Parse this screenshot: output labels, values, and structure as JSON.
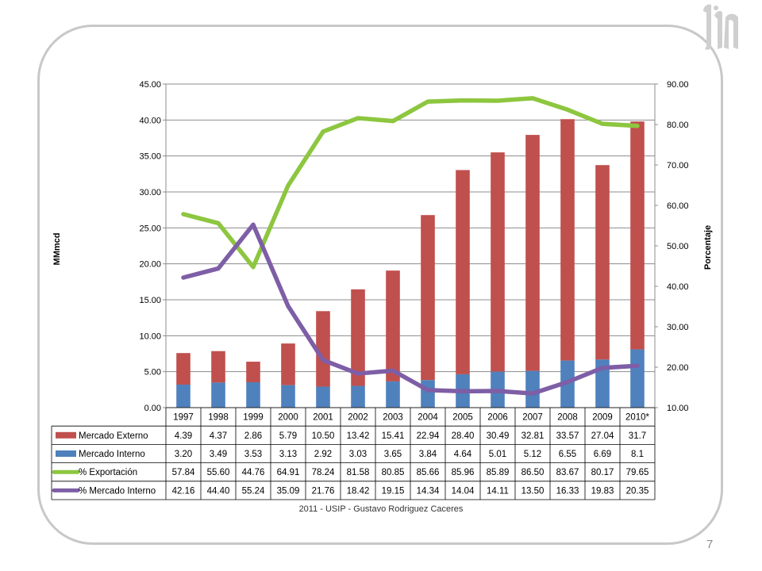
{
  "footer": {
    "credit": "2011 - USIP - Gustavo Rodriguez Caceres",
    "page_number": "7"
  },
  "colors": {
    "externo": "#c0504d",
    "interno": "#4f81bd",
    "exportacion": "#8dc63f",
    "mercado_interno_pct": "#7e5ea6",
    "gridline": "#8c8c8c",
    "frame": "#c8c8c8"
  },
  "chart_data": {
    "type": "bar",
    "stacked": true,
    "categories": [
      "1997",
      "1998",
      "1999",
      "2000",
      "2001",
      "2002",
      "2003",
      "2004",
      "2005",
      "2006",
      "2007",
      "2008",
      "2009",
      "2010*"
    ],
    "ylabel": "MMmcd",
    "y2label": "Porcentaje",
    "ylim": [
      0,
      45
    ],
    "y2lim": [
      10,
      90
    ],
    "yticks": [
      "0.00",
      "5.00",
      "10.00",
      "15.00",
      "20.00",
      "25.00",
      "30.00",
      "35.00",
      "40.00",
      "45.00"
    ],
    "y2ticks": [
      "10.00",
      "20.00",
      "30.00",
      "40.00",
      "50.00",
      "60.00",
      "70.00",
      "80.00",
      "90.00"
    ],
    "grid": true,
    "legend": "data table below the chart",
    "series": [
      {
        "name": "Mercado Externo",
        "kind": "bar",
        "axis": "left",
        "color": "#c0504d",
        "values": [
          4.39,
          4.37,
          2.86,
          5.79,
          10.5,
          13.42,
          15.41,
          22.94,
          28.4,
          30.49,
          32.81,
          33.57,
          27.04,
          31.7
        ],
        "labels": [
          "4.39",
          "4.37",
          "2.86",
          "5.79",
          "10.50",
          "13.42",
          "15.41",
          "22.94",
          "28.40",
          "30.49",
          "32.81",
          "33.57",
          "27.04",
          "31.7"
        ]
      },
      {
        "name": "Mercado Interno",
        "kind": "bar",
        "axis": "left",
        "color": "#4f81bd",
        "values": [
          3.2,
          3.49,
          3.53,
          3.13,
          2.92,
          3.03,
          3.65,
          3.84,
          4.64,
          5.01,
          5.12,
          6.55,
          6.69,
          8.1
        ],
        "labels": [
          "3.20",
          "3.49",
          "3.53",
          "3.13",
          "2.92",
          "3.03",
          "3.65",
          "3.84",
          "4.64",
          "5.01",
          "5.12",
          "6.55",
          "6.69",
          "8.1"
        ]
      },
      {
        "name": "% Exportación",
        "kind": "line",
        "axis": "right",
        "color": "#8dc63f",
        "values": [
          57.84,
          55.6,
          44.76,
          64.91,
          78.24,
          81.58,
          80.85,
          85.66,
          85.96,
          85.89,
          86.5,
          83.67,
          80.17,
          79.65
        ],
        "labels": [
          "57.84",
          "55.60",
          "44.76",
          "64.91",
          "78.24",
          "81.58",
          "80.85",
          "85.66",
          "85.96",
          "85.89",
          "86.50",
          "83.67",
          "80.17",
          "79.65"
        ]
      },
      {
        "name": "% Mercado Interno",
        "kind": "line",
        "axis": "right",
        "color": "#7e5ea6",
        "values": [
          42.16,
          44.4,
          55.24,
          35.09,
          21.76,
          18.42,
          19.15,
          14.34,
          14.04,
          14.11,
          13.5,
          16.33,
          19.83,
          20.35
        ],
        "labels": [
          "42.16",
          "44.40",
          "55.24",
          "35.09",
          "21.76",
          "18.42",
          "19.15",
          "14.34",
          "14.04",
          "14.11",
          "13.50",
          "16.33",
          "19.83",
          "20.35"
        ]
      }
    ]
  }
}
